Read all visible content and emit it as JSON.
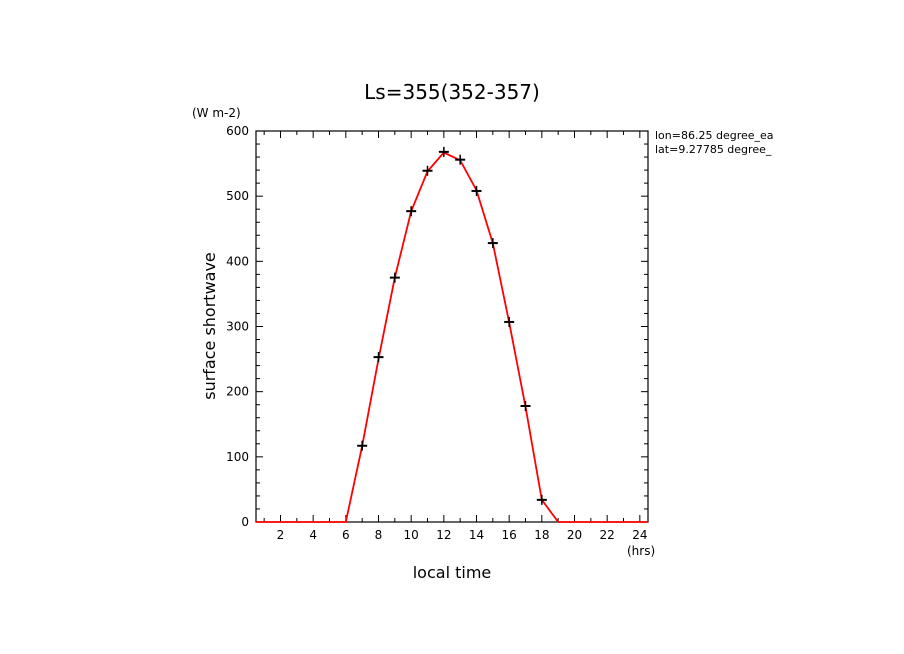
{
  "colors": {
    "line": "#ff0000",
    "marker": "#000000",
    "axis": "#000000"
  },
  "chart_data": {
    "type": "line",
    "title": "Ls=355(352-357)",
    "xlabel": "local time",
    "ylabel": "surface shortwave",
    "x_unit": "(hrs)",
    "y_unit": "(W m-2)",
    "xlim": [
      0.5,
      24.5
    ],
    "ylim": [
      0,
      600
    ],
    "x_ticks": [
      2,
      4,
      6,
      8,
      10,
      12,
      14,
      16,
      18,
      20,
      22,
      24
    ],
    "y_ticks": [
      0,
      100,
      200,
      300,
      400,
      500,
      600
    ],
    "annotations": [
      "lon=86.25 degree_ea",
      "lat=9.27785 degree_"
    ],
    "series": [
      {
        "name": "line",
        "x": [
          0.5,
          1,
          2,
          3,
          4,
          5,
          6,
          7,
          8,
          9,
          10,
          11,
          12,
          13,
          14,
          15,
          16,
          17,
          18,
          19,
          20,
          21,
          22,
          23,
          24,
          24.5
        ],
        "values": [
          0,
          0,
          0,
          0,
          0,
          0,
          0,
          117,
          250,
          375,
          477,
          538,
          567,
          555,
          509,
          428,
          306,
          177,
          34,
          0,
          0,
          0,
          0,
          0,
          0,
          0
        ]
      },
      {
        "name": "markers",
        "x": [
          7,
          8,
          9,
          10,
          11,
          12,
          13,
          14,
          15,
          16,
          17,
          18
        ],
        "values": [
          117,
          253,
          375,
          477,
          539,
          568,
          556,
          508,
          428,
          307,
          178,
          34
        ]
      }
    ]
  }
}
